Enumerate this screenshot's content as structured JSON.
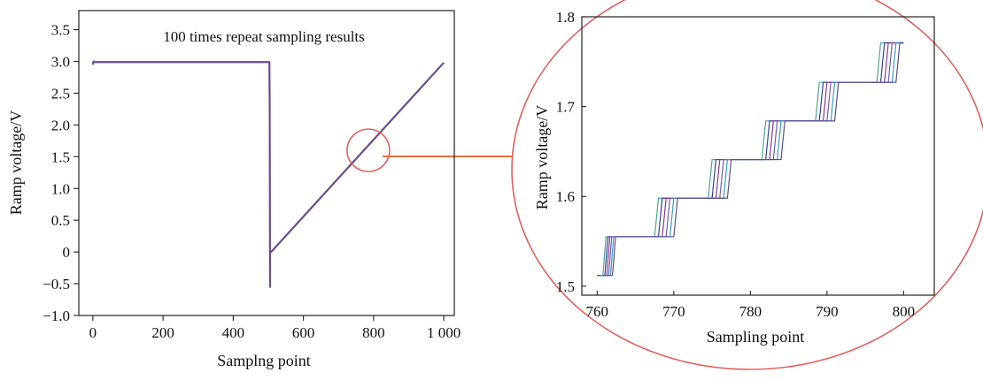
{
  "chart_data": [
    {
      "type": "line",
      "title": "",
      "annotation": "100 times repeat sampling results",
      "xlabel": "Samplng point",
      "ylabel": "Ramp voltage/V",
      "xlim": [
        -40,
        1030
      ],
      "ylim": [
        -1.0,
        3.8
      ],
      "x_ticks": [
        0,
        200,
        400,
        600,
        800,
        1000
      ],
      "x_tick_labels": [
        "0",
        "200",
        "400",
        "600",
        "800",
        "1 000"
      ],
      "y_ticks": [
        -1.0,
        -0.5,
        0,
        0.5,
        1.0,
        1.5,
        2.0,
        2.5,
        3.0,
        3.5
      ],
      "y_tick_labels": [
        "−1.0",
        "−0.5",
        "0",
        "0.5",
        "1.0",
        "1.5",
        "2.0",
        "2.5",
        "3.0",
        "3.5"
      ],
      "grid": false,
      "series": [
        {
          "x": [
            0,
            2,
            5,
            500,
            503,
            504,
            505,
            505,
            506,
            508,
            1000
          ],
          "y": [
            2.95,
            3.0,
            2.99,
            2.99,
            2.99,
            2.3,
            -0.55,
            0.0,
            0.0,
            0.0,
            2.98
          ],
          "color": "#6a4c8c"
        }
      ],
      "highlight_circle": {
        "center": [
          785,
          1.6
        ],
        "color": "#e0605a"
      }
    },
    {
      "type": "line",
      "title": "",
      "xlabel": "Sampling point",
      "ylabel": "Ramp voltage/V",
      "xlim": [
        758,
        804
      ],
      "ylim": [
        1.49,
        1.8
      ],
      "x_ticks": [
        760,
        770,
        780,
        790,
        800
      ],
      "x_tick_labels": [
        "760",
        "770",
        "780",
        "790",
        "800"
      ],
      "y_ticks": [
        1.5,
        1.6,
        1.7,
        1.8
      ],
      "y_tick_labels": [
        "1.5",
        "1.6",
        "1.7",
        "1.8"
      ],
      "grid": false,
      "step_levels": [
        1.512,
        1.555,
        1.598,
        1.641,
        1.684,
        1.727,
        1.771
      ],
      "step_starts": [
        760,
        768,
        775,
        782,
        789,
        797
      ],
      "step_end": 800,
      "series": [
        {
          "offset": -0.5,
          "color": "#4ba890"
        },
        {
          "offset": 0,
          "color": "#3a3f9a"
        },
        {
          "offset": 0.5,
          "color": "#8a3a8a"
        },
        {
          "offset": 1.0,
          "color": "#6b5fb5"
        },
        {
          "offset": 1.5,
          "color": "#3a9cc2"
        },
        {
          "offset": 2.0,
          "color": "#5e4c92"
        }
      ]
    }
  ],
  "colors": {
    "axis": "#222222",
    "zoom_circle": "#e0605a",
    "connector": "#e8743a"
  }
}
